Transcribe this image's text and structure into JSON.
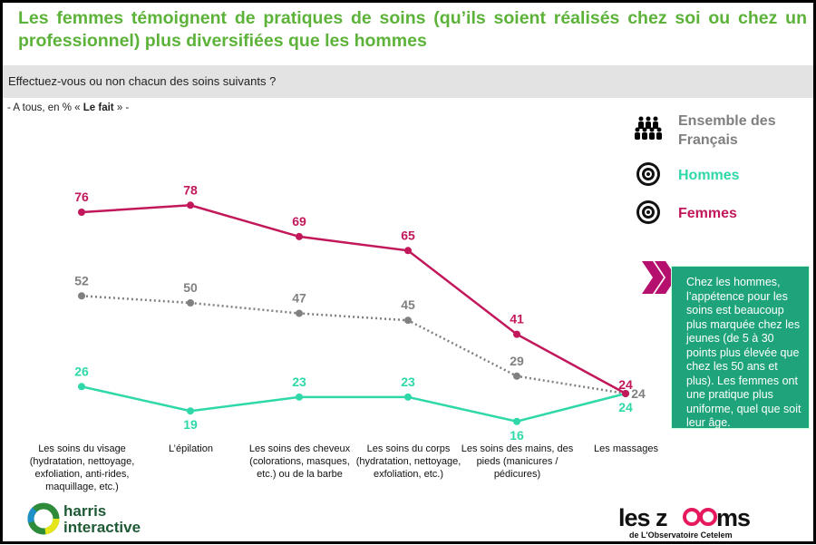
{
  "title": "Les femmes témoignent de pratiques de soins (qu’ils soient réalisés chez soi ou chez un professionnel) plus diversifiées que les hommes",
  "question": "Effectuez-vous ou non chacun des soins suivants ?",
  "base": {
    "prefix": "- A tous, en % « ",
    "bold": "Le fait",
    "suffix": " » -"
  },
  "callout": "Chez les hommes, l’appétence pour les soins est beaucoup plus marquée chez les jeunes (de 5 à 30 points plus élevée que chez les 50 ans et plus). Les femmes ont une pratique plus uniforme, quel que soit leur âge.",
  "logos": {
    "harris": "harris interactive",
    "zooms": "les zOOms",
    "zooms_sub": "de L'Observatoire Cetelem"
  },
  "colors": {
    "femmes": "#c2185b",
    "hommes": "#2ed8a8",
    "ensemble": "#808080",
    "title": "#5db33a",
    "callout": "#1ea37a"
  },
  "chart_data": {
    "type": "line",
    "categories": [
      "Les soins du visage (hydratation, nettoyage, exfoliation, anti-rides, maquillage, etc.)",
      "L’épilation",
      "Les soins des cheveux (colorations, masques, etc.) ou de la barbe",
      "Les soins du corps (hydratation, nettoyage, exfoliation, etc.)",
      "Les soins des mains, des pieds (manicures / pédicures)",
      "Les massages"
    ],
    "series": [
      {
        "name": "Ensemble des Français",
        "values": [
          52,
          50,
          47,
          45,
          29,
          24
        ],
        "style": "dotted",
        "icon": "people-group-icon"
      },
      {
        "name": "Hommes",
        "values": [
          26,
          19,
          23,
          23,
          16,
          24
        ],
        "style": "solid",
        "icon": "target-icon"
      },
      {
        "name": "Femmes",
        "values": [
          76,
          78,
          69,
          65,
          41,
          24
        ],
        "style": "solid",
        "icon": "target-icon"
      }
    ],
    "legend": "top-right",
    "grid": false
  }
}
